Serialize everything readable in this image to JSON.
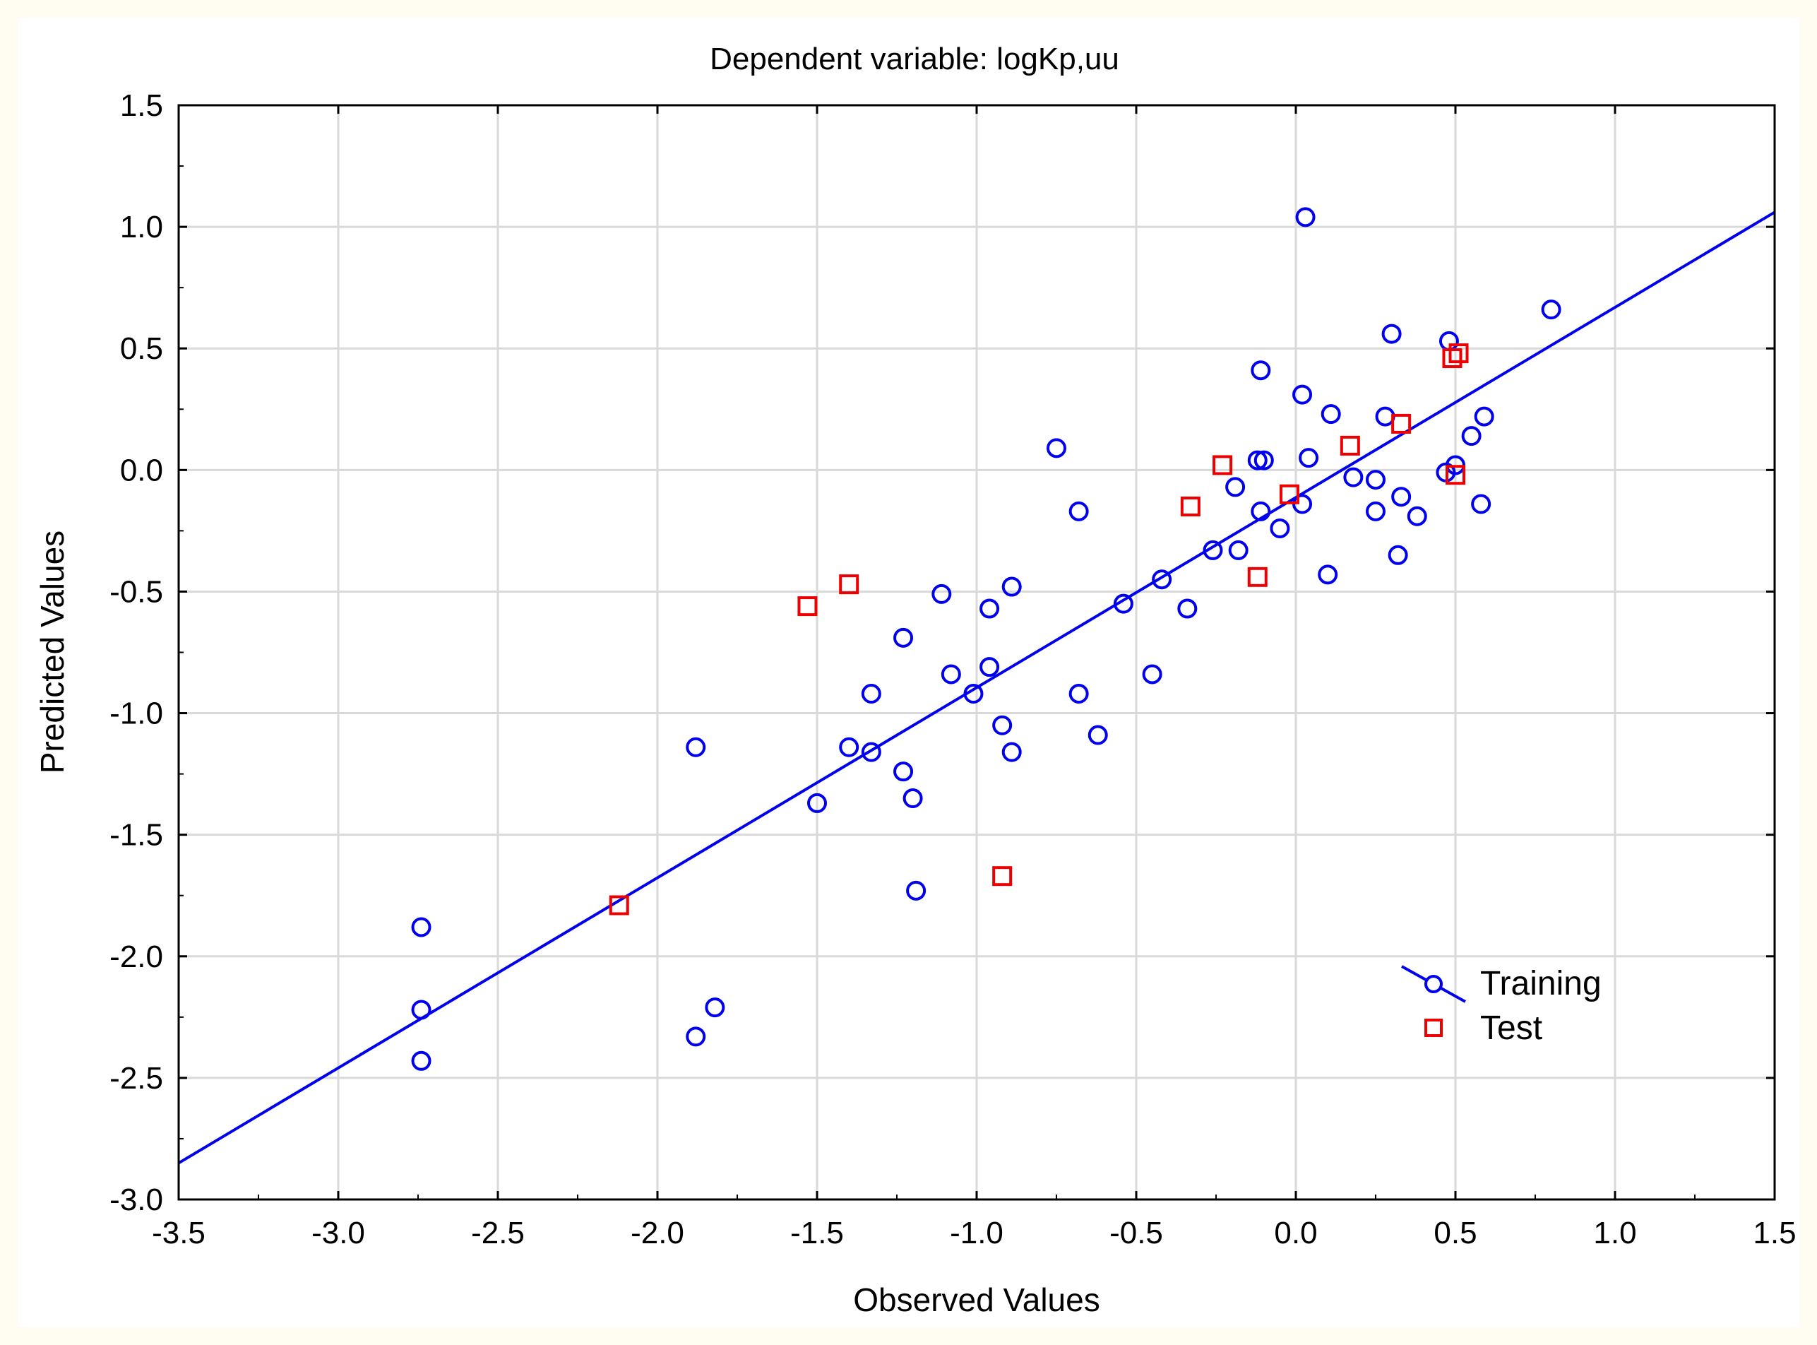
{
  "chart_data": {
    "type": "scatter",
    "title": "Dependent variable: logKp,uu",
    "xlabel": "Observed Values",
    "ylabel": "Predicted Values",
    "xlim": [
      -3.5,
      1.5
    ],
    "ylim": [
      -3.0,
      1.5
    ],
    "xticks": [
      -3.5,
      -3.0,
      -2.5,
      -2.0,
      -1.5,
      -1.0,
      -0.5,
      0.0,
      0.5,
      1.0,
      1.5
    ],
    "yticks": [
      -3.0,
      -2.5,
      -2.0,
      -1.5,
      -1.0,
      -0.5,
      0.0,
      0.5,
      1.0,
      1.5
    ],
    "xtick_labels": [
      "-3.5",
      "-3.0",
      "-2.5",
      "-2.0",
      "-1.5",
      "-1.0",
      "-0.5",
      "0.0",
      "0.5",
      "1.0",
      "1.5"
    ],
    "ytick_labels": [
      "-3.0",
      "-2.5",
      "-2.0",
      "-1.5",
      "-1.0",
      "-0.5",
      "0.0",
      "0.5",
      "1.0",
      "1.5"
    ],
    "grid": true,
    "legend_position": "bottom-right",
    "fit_line": {
      "x": [
        -3.5,
        1.5
      ],
      "y": [
        -2.85,
        1.06
      ]
    },
    "series": [
      {
        "name": "Training",
        "marker": "circle",
        "color": "#0000ee",
        "line": true,
        "points": [
          [
            0.03,
            1.04
          ],
          [
            0.8,
            0.66
          ],
          [
            0.3,
            0.56
          ],
          [
            0.48,
            0.53
          ],
          [
            -0.11,
            0.41
          ],
          [
            0.02,
            0.31
          ],
          [
            0.11,
            0.23
          ],
          [
            0.28,
            0.22
          ],
          [
            0.59,
            0.22
          ],
          [
            0.55,
            0.14
          ],
          [
            -0.75,
            0.09
          ],
          [
            -0.12,
            0.04
          ],
          [
            -0.1,
            0.04
          ],
          [
            0.04,
            0.05
          ],
          [
            0.5,
            0.02
          ],
          [
            0.47,
            -0.01
          ],
          [
            0.18,
            -0.03
          ],
          [
            0.25,
            -0.04
          ],
          [
            -0.19,
            -0.07
          ],
          [
            0.33,
            -0.11
          ],
          [
            0.02,
            -0.14
          ],
          [
            0.58,
            -0.14
          ],
          [
            -0.68,
            -0.17
          ],
          [
            -0.11,
            -0.17
          ],
          [
            0.25,
            -0.17
          ],
          [
            0.38,
            -0.19
          ],
          [
            -0.05,
            -0.24
          ],
          [
            -0.26,
            -0.33
          ],
          [
            -0.18,
            -0.33
          ],
          [
            0.32,
            -0.35
          ],
          [
            0.1,
            -0.43
          ],
          [
            -0.42,
            -0.45
          ],
          [
            -0.89,
            -0.48
          ],
          [
            -1.11,
            -0.51
          ],
          [
            -0.54,
            -0.55
          ],
          [
            -0.96,
            -0.57
          ],
          [
            -0.34,
            -0.57
          ],
          [
            -1.23,
            -0.69
          ],
          [
            -0.96,
            -0.81
          ],
          [
            -1.08,
            -0.84
          ],
          [
            -0.45,
            -0.84
          ],
          [
            -1.33,
            -0.92
          ],
          [
            -1.01,
            -0.92
          ],
          [
            -0.68,
            -0.92
          ],
          [
            -0.92,
            -1.05
          ],
          [
            -0.62,
            -1.09
          ],
          [
            -1.4,
            -1.14
          ],
          [
            -1.88,
            -1.14
          ],
          [
            -1.33,
            -1.16
          ],
          [
            -0.89,
            -1.16
          ],
          [
            -1.23,
            -1.24
          ],
          [
            -1.2,
            -1.35
          ],
          [
            -1.5,
            -1.37
          ],
          [
            -1.19,
            -1.73
          ],
          [
            -2.74,
            -1.88
          ],
          [
            -2.74,
            -2.22
          ],
          [
            -1.82,
            -2.21
          ],
          [
            -1.88,
            -2.33
          ],
          [
            -2.74,
            -2.43
          ]
        ]
      },
      {
        "name": "Test",
        "marker": "square",
        "color": "#ee0000",
        "line": false,
        "points": [
          [
            0.51,
            0.48
          ],
          [
            0.49,
            0.46
          ],
          [
            0.33,
            0.19
          ],
          [
            0.17,
            0.1
          ],
          [
            -0.23,
            0.02
          ],
          [
            0.5,
            -0.02
          ],
          [
            -0.02,
            -0.1
          ],
          [
            -0.33,
            -0.15
          ],
          [
            -0.12,
            -0.44
          ],
          [
            -1.4,
            -0.47
          ],
          [
            -1.53,
            -0.56
          ],
          [
            -0.92,
            -1.67
          ],
          [
            -2.12,
            -1.79
          ]
        ]
      }
    ]
  }
}
